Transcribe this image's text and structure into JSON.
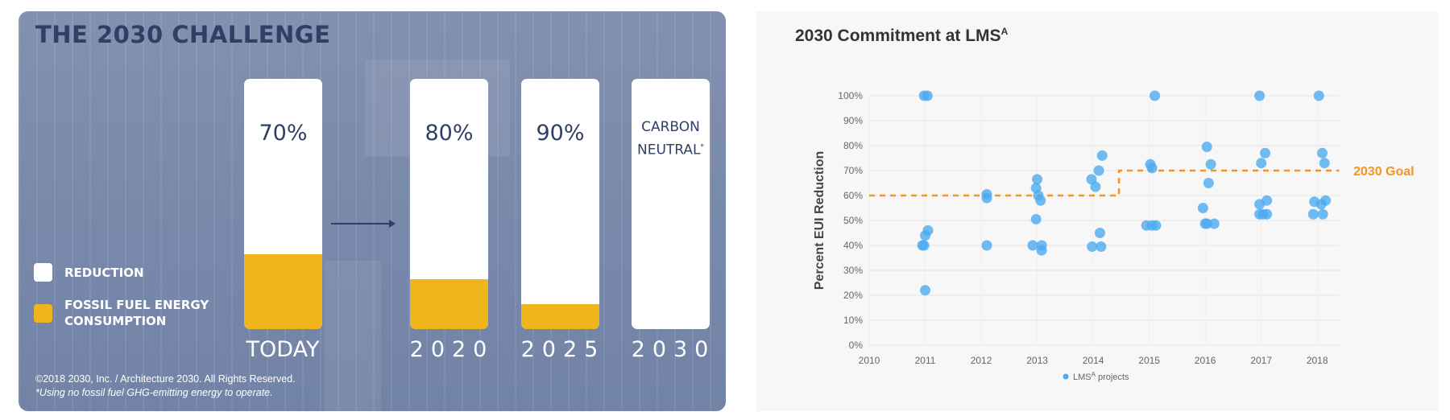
{
  "left": {
    "title": "THE 2030 CHALLENGE",
    "bars": [
      {
        "label": "TODAY",
        "reduction_label": "70%",
        "fossil_fraction": 0.3
      },
      {
        "label": "2020",
        "reduction_label": "80%",
        "fossil_fraction": 0.2
      },
      {
        "label": "2025",
        "reduction_label": "90%",
        "fossil_fraction": 0.1
      },
      {
        "label": "2030",
        "reduction_label_line1": "CARBON",
        "reduction_label_line2": "NEUTRAL",
        "footnote_mark": "*",
        "fossil_fraction": 0.0
      }
    ],
    "legend": {
      "reduction": "REDUCTION",
      "fossil_line1": "FOSSIL FUEL ENERGY",
      "fossil_line2": "CONSUMPTION"
    },
    "copyright": "©2018  2030, Inc. / Architecture 2030. All Rights Reserved.",
    "footnote": "*Using no fossil fuel GHG-emitting energy to operate.",
    "colors": {
      "reduction": "#ffffff",
      "fossil": "#f0b41c",
      "text": "#2f3f66"
    }
  },
  "chart_data": {
    "type": "scatter",
    "title": "2030 Commitment at LMS",
    "title_sup": "A",
    "xlabel": "",
    "ylabel": "Percent EUI Reduction",
    "xlim": [
      2010,
      2018.4
    ],
    "ylim": [
      0,
      100
    ],
    "x_ticks": [
      "2010",
      "2011",
      "2012",
      "2013",
      "2014",
      "2015",
      "2016",
      "2017",
      "2018"
    ],
    "y_ticks": [
      "0%",
      "10%",
      "20%",
      "30%",
      "40%",
      "50%",
      "60%",
      "70%",
      "80%",
      "90%",
      "100%"
    ],
    "grid": true,
    "legend": {
      "label": "LMS",
      "label_sup": "A",
      "label_suffix": " projects",
      "placement": "bottom-center"
    },
    "point_color": "#4eaaf0",
    "goal": {
      "label": "2030 Goal",
      "color": "#f7941d",
      "steps": [
        {
          "x_start": 2010,
          "x_end": 2014.46,
          "y": 60
        },
        {
          "x_start": 2014.46,
          "x_end": 2018.39,
          "y": 70
        }
      ]
    },
    "series": [
      {
        "name": "LMS projects",
        "points": [
          [
            2010.98,
            100
          ],
          [
            2011.04,
            100
          ],
          [
            2011.05,
            46
          ],
          [
            2011.0,
            44
          ],
          [
            2010.95,
            40
          ],
          [
            2010.98,
            40
          ],
          [
            2011.0,
            22
          ],
          [
            2012.1,
            60.5
          ],
          [
            2012.1,
            59
          ],
          [
            2012.1,
            40
          ],
          [
            2013.0,
            66.5
          ],
          [
            2012.98,
            63
          ],
          [
            2013.02,
            60
          ],
          [
            2013.06,
            58
          ],
          [
            2012.98,
            50.5
          ],
          [
            2012.92,
            40
          ],
          [
            2013.08,
            40
          ],
          [
            2013.08,
            38
          ],
          [
            2014.16,
            76
          ],
          [
            2014.1,
            70
          ],
          [
            2013.97,
            66.5
          ],
          [
            2014.04,
            63.5
          ],
          [
            2014.12,
            45
          ],
          [
            2013.98,
            39.5
          ],
          [
            2014.14,
            39.5
          ],
          [
            2015.1,
            100
          ],
          [
            2015.02,
            72.5
          ],
          [
            2015.05,
            71
          ],
          [
            2014.95,
            48
          ],
          [
            2015.05,
            48
          ],
          [
            2015.12,
            48
          ],
          [
            2016.03,
            79.5
          ],
          [
            2016.1,
            72.5
          ],
          [
            2016.06,
            65
          ],
          [
            2015.96,
            55
          ],
          [
            2016.03,
            48.7
          ],
          [
            2016.0,
            48.7
          ],
          [
            2016.16,
            48.7
          ],
          [
            2016.97,
            100
          ],
          [
            2017.07,
            77
          ],
          [
            2017.0,
            73
          ],
          [
            2017.1,
            58
          ],
          [
            2016.97,
            56.5
          ],
          [
            2016.97,
            52.5
          ],
          [
            2017.1,
            52.5
          ],
          [
            2017.03,
            52.5
          ],
          [
            2018.03,
            100
          ],
          [
            2018.09,
            77
          ],
          [
            2018.13,
            73
          ],
          [
            2018.15,
            58
          ],
          [
            2017.95,
            57.5
          ],
          [
            2018.07,
            56.5
          ],
          [
            2017.93,
            52.5
          ],
          [
            2018.1,
            52.5
          ]
        ]
      }
    ]
  }
}
